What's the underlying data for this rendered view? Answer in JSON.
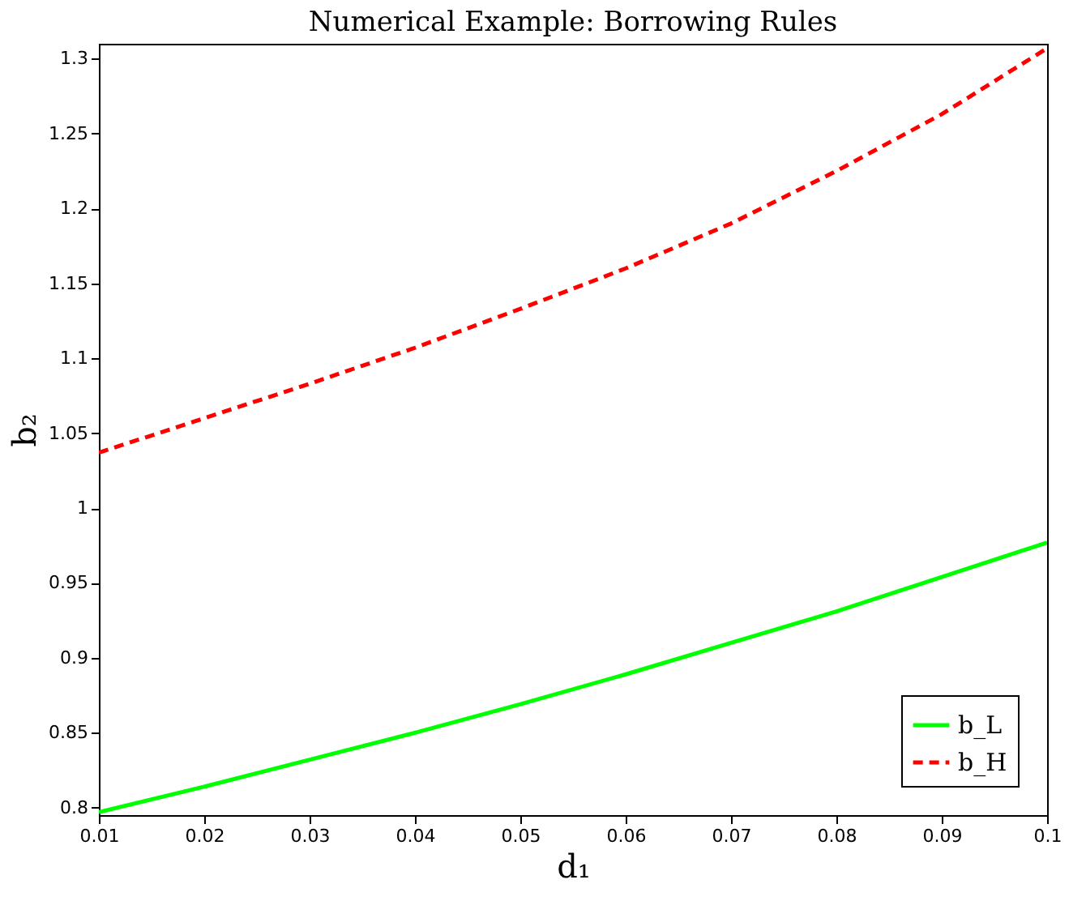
{
  "chart_data": {
    "type": "line",
    "title": "Numerical Example: Borrowing Rules",
    "xlabel": "d₁",
    "ylabel": "b₂",
    "x": [
      0.01,
      0.02,
      0.03,
      0.04,
      0.05,
      0.06,
      0.07,
      0.08,
      0.09,
      0.1
    ],
    "series": [
      {
        "name": "b_L",
        "color": "#00ff00",
        "line_style": "solid",
        "values": [
          0.797,
          0.814,
          0.832,
          0.85,
          0.869,
          0.889,
          0.91,
          0.931,
          0.954,
          0.977
        ]
      },
      {
        "name": "b_H",
        "color": "#ff0000",
        "line_style": "dashed",
        "values": [
          1.037,
          1.06,
          1.083,
          1.107,
          1.133,
          1.16,
          1.19,
          1.225,
          1.263,
          1.307
        ]
      }
    ],
    "xlim": [
      0.01,
      0.1
    ],
    "ylim": [
      0.795,
      1.31
    ],
    "xticks": [
      0.01,
      0.02,
      0.03,
      0.04,
      0.05,
      0.06,
      0.07,
      0.08,
      0.09,
      0.1
    ],
    "yticks": [
      0.8,
      0.85,
      0.9,
      0.95,
      1,
      1.05,
      1.1,
      1.15,
      1.2,
      1.25,
      1.3
    ],
    "grid": false,
    "legend": "bottom right"
  }
}
